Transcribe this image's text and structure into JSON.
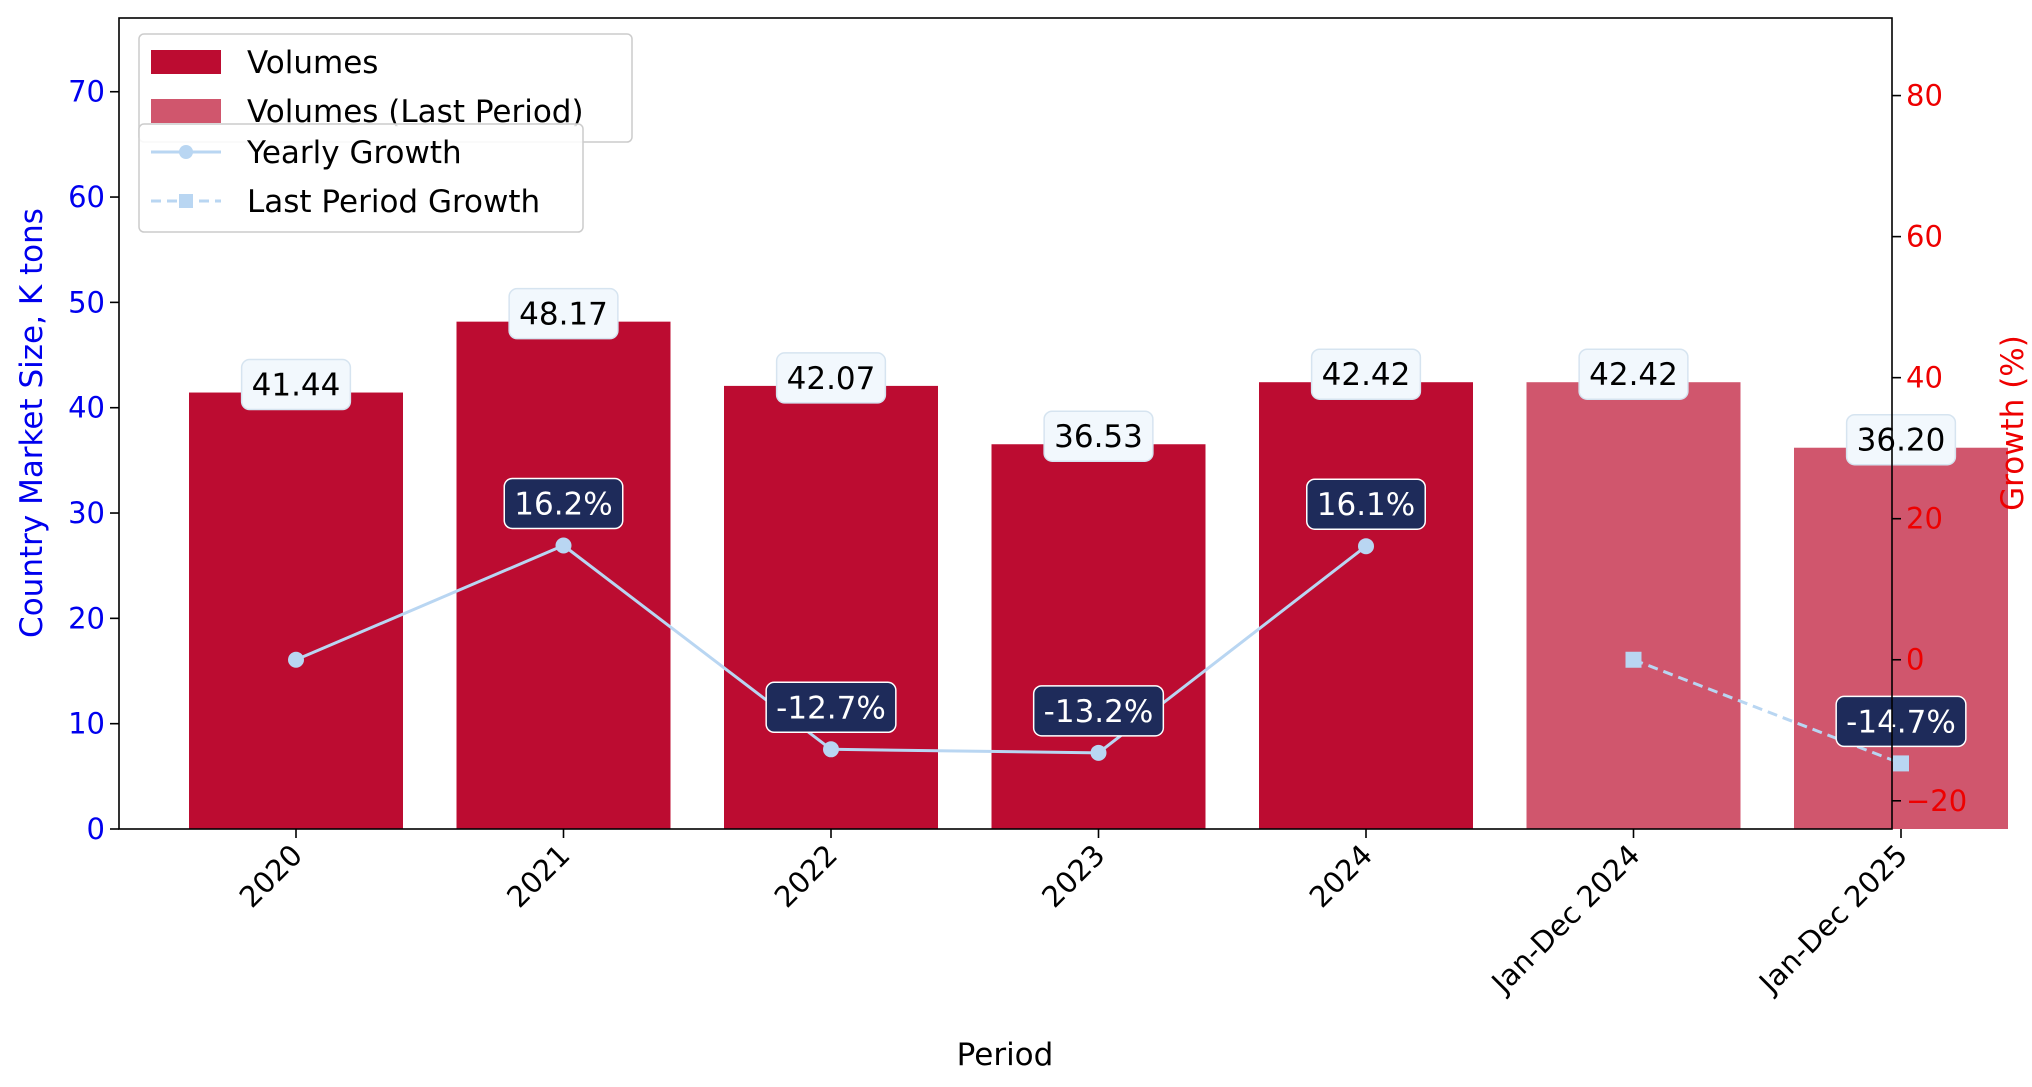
{
  "chart_data": {
    "type": "bar",
    "categories": [
      "2020",
      "2021",
      "2022",
      "2023",
      "2024",
      "Jan-Dec 2024",
      "Jan-Dec 2025"
    ],
    "series": [
      {
        "name": "Volumes",
        "axis": "left",
        "values": [
          41.44,
          48.17,
          42.07,
          36.53,
          42.42,
          null,
          null
        ],
        "labels": [
          "41.44",
          "48.17",
          "42.07",
          "36.53",
          "42.42",
          "",
          ""
        ],
        "color": "#bc0c31"
      },
      {
        "name": "Volumes (Last Period)",
        "axis": "left",
        "values": [
          null,
          null,
          null,
          null,
          null,
          42.42,
          36.2
        ],
        "labels": [
          "",
          "",
          "",
          "",
          "",
          "42.42",
          "36.20"
        ],
        "color": "#d0566d"
      },
      {
        "name": "Yearly Growth",
        "axis": "right",
        "style": "solid line, circle markers",
        "values": [
          0,
          16.2,
          -12.7,
          -13.2,
          16.1,
          null,
          null
        ],
        "labels": [
          "",
          "16.2%",
          "-12.7%",
          "-13.2%",
          "16.1%",
          "",
          ""
        ],
        "color": "#b9d6f2"
      },
      {
        "name": "Last Period Growth",
        "axis": "right",
        "style": "dashed line, square markers",
        "values": [
          null,
          null,
          null,
          null,
          null,
          0,
          -14.7
        ],
        "labels": [
          "",
          "",
          "",
          "",
          "",
          "",
          "-14.7%"
        ],
        "color": "#b9d6f2"
      }
    ],
    "xlabel": "Period",
    "ylabel": "Country Market Size, K tons",
    "y2label": "Growth (%)",
    "ylim": [
      0,
      77
    ],
    "y2lim": [
      -24,
      91
    ],
    "yticks": [
      0,
      10,
      20,
      30,
      40,
      50,
      60,
      70
    ],
    "y2ticks": [
      -20,
      0,
      20,
      40,
      60,
      80
    ],
    "y2tick_labels": [
      "−20",
      "0",
      "20",
      "40",
      "60",
      "80"
    ],
    "grid": false,
    "legend_placement": "top-left",
    "growth_label_bg": "#1e2b5a",
    "value_label_bg": "#f2f8fd",
    "left_axis_color": "#0000ee",
    "right_axis_color": "#ee0000"
  }
}
